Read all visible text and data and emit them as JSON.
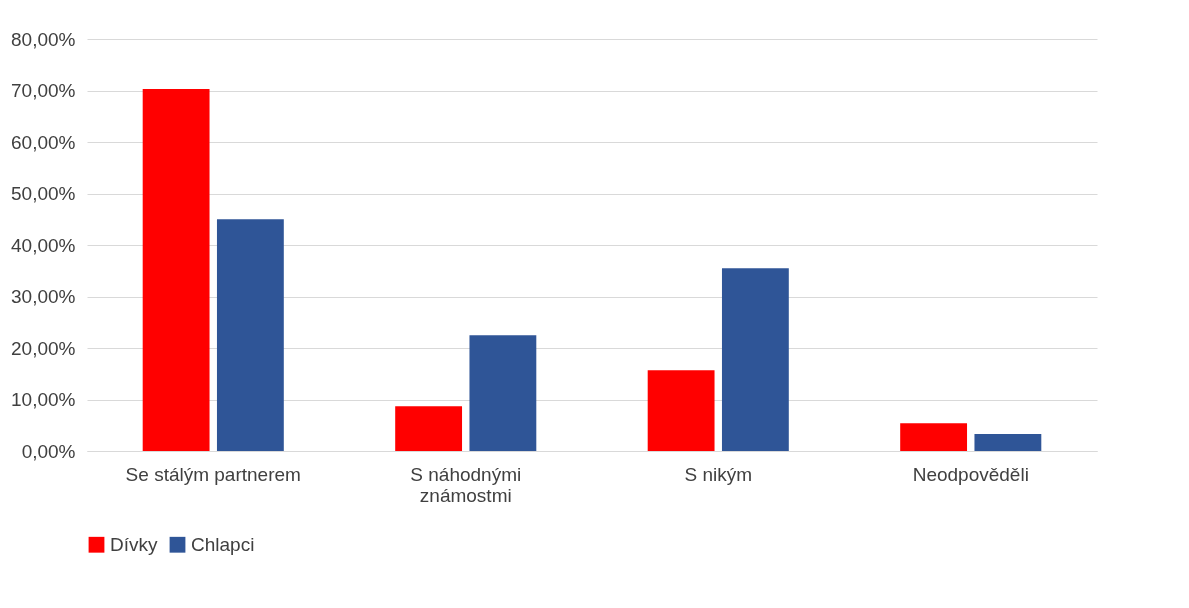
{
  "chart_data": {
    "type": "bar",
    "categories": [
      "Se stálým partnerem",
      "S náhodnými\nznámostmi",
      "S nikým",
      "Neodpověděli"
    ],
    "series": [
      {
        "name": "Dívky",
        "color": "#ff0000",
        "values": [
          70.3,
          8.7,
          15.7,
          5.4
        ]
      },
      {
        "name": "Chlapci",
        "color": "#2f5597",
        "values": [
          45.0,
          22.5,
          35.5,
          3.3
        ]
      }
    ],
    "ylim": [
      0,
      80
    ],
    "yticks": [
      {
        "value": 0,
        "label": "0,00%"
      },
      {
        "value": 10,
        "label": "10,00%"
      },
      {
        "value": 20,
        "label": "20,00%"
      },
      {
        "value": 30,
        "label": "30,00%"
      },
      {
        "value": 40,
        "label": "40,00%"
      },
      {
        "value": 50,
        "label": "50,00%"
      },
      {
        "value": 60,
        "label": "60,00%"
      },
      {
        "value": 70,
        "label": "70,00%"
      },
      {
        "value": 80,
        "label": "80,00%"
      }
    ],
    "grid": "y",
    "legend": "bottom"
  }
}
